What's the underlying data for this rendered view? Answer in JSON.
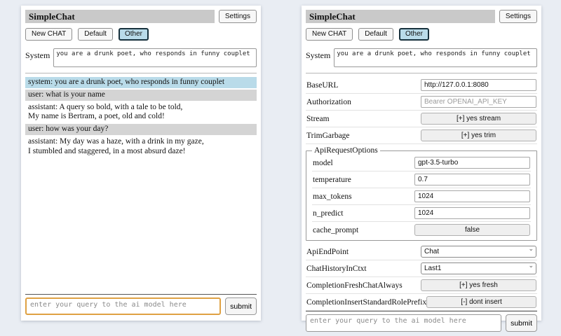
{
  "colors": {
    "page_background": "#e9edf3",
    "titlebar_background": "#c9c9c9",
    "selected_session_background": "#b9dbe9",
    "selected_session_border": "#17313d",
    "system_message_background": "#b9dbe9",
    "user_message_background": "#d4d4d4",
    "focused_input_border": "#dfa143"
  },
  "header": {
    "title": "SimpleChat",
    "settings_button": "Settings"
  },
  "toolbar": {
    "new_chat_button": "New CHAT",
    "sessions": [
      {
        "label": "Default",
        "selected": false
      },
      {
        "label": "Other",
        "selected": true
      }
    ]
  },
  "system_prompt": {
    "label": "System",
    "value": "you are a drunk poet, who responds in funny couplet"
  },
  "chat": {
    "messages": [
      {
        "role": "system",
        "text": "system: you are a drunk poet, who responds in funny couplet"
      },
      {
        "role": "user",
        "text": "user: what is your name"
      },
      {
        "role": "assistant",
        "text": "assistant: A query so bold, with a tale to be told,\nMy name is Bertram, a poet, old and cold!"
      },
      {
        "role": "user",
        "text": "user: how was your day?"
      },
      {
        "role": "assistant",
        "text": "assistant: My day was a haze, with a drink in my gaze,\nI stumbled and staggered, in a most absurd daze!"
      }
    ]
  },
  "query": {
    "placeholder": "enter your query to the ai model here",
    "submit_button": "submit"
  },
  "settings": {
    "base_url": {
      "label": "BaseURL",
      "value": "http://127.0.0.1:8080"
    },
    "authorization": {
      "label": "Authorization",
      "placeholder": "Bearer OPENAI_API_KEY"
    },
    "stream": {
      "label": "Stream",
      "button_label": "[+] yes stream"
    },
    "trim_garbage": {
      "label": "TrimGarbage",
      "button_label": "[+] yes trim"
    },
    "api_request_options": {
      "legend": "ApiRequestOptions",
      "model": {
        "label": "model",
        "value": "gpt-3.5-turbo"
      },
      "temperature": {
        "label": "temperature",
        "value": "0.7"
      },
      "max_tokens": {
        "label": "max_tokens",
        "value": "1024"
      },
      "n_predict": {
        "label": "n_predict",
        "value": "1024"
      },
      "cache_prompt": {
        "label": "cache_prompt",
        "button_label": "false"
      }
    },
    "api_endpoint": {
      "label": "ApiEndPoint",
      "selected_option": "Chat"
    },
    "chat_history_in_ctxt": {
      "label": "ChatHistoryInCtxt",
      "selected_option": "Last1"
    },
    "completion_fresh_chat_always": {
      "label": "CompletionFreshChatAlways",
      "button_label": "[+] yes fresh"
    },
    "completion_insert_standard_role_prefix": {
      "label": "CompletionInsertStandardRolePrefix",
      "button_label": "[-] dont insert"
    }
  }
}
